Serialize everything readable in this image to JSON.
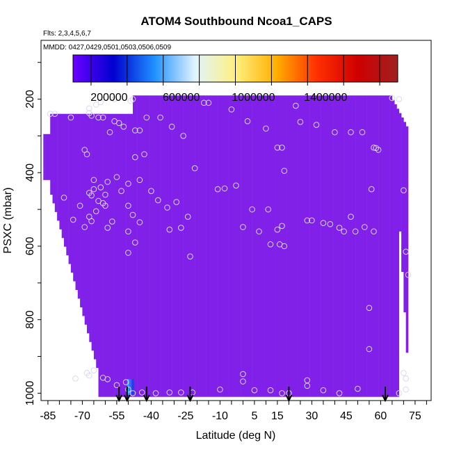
{
  "chart_data": {
    "type": "scatter",
    "title": "ATOM4 Southbound Ncoa1_CAPS",
    "flights_label": "Flts: 2,3,4,5,6,7",
    "dates_label": "MMDD: 0427,0429,0501,0503,0506,0509",
    "xlabel": "Latitude (deg N)",
    "ylabel": "PSXC (mbar)",
    "xlim": [
      -88,
      82
    ],
    "ylim": [
      1020,
      40
    ],
    "xticks": [
      -85,
      -70,
      -55,
      -40,
      -25,
      -10,
      5,
      15,
      30,
      45,
      60,
      75
    ],
    "x_minor_step": 5,
    "yticks": [
      200,
      400,
      600,
      800,
      1000
    ],
    "colorbar": {
      "range": [
        0,
        1800000
      ],
      "ticks": [
        200000,
        600000,
        1000000,
        1400000
      ],
      "tick_labels": [
        "200000",
        "600000",
        "1000000",
        "1400000"
      ],
      "colors": [
        "#6a00ff",
        "#0000d0",
        "#1e90ff",
        "#e0f4ff",
        "#fff080",
        "#ffb000",
        "#ff3000",
        "#d00000",
        "#a02020"
      ]
    },
    "field_value": 50000,
    "field_color": "#8020e8",
    "highlight_cells": [
      {
        "lat_from": -50.5,
        "lat_to": -49.5,
        "p_from": 962,
        "p_to": 1005,
        "color": "#00b8ff"
      },
      {
        "lat_from": -49.5,
        "lat_to": -48.5,
        "p_from": 962,
        "p_to": 1005,
        "color": "#4060ff"
      },
      {
        "lat_from": -48.5,
        "lat_to": -47.5,
        "p_from": 962,
        "p_to": 1005,
        "color": "#2040e0"
      }
    ],
    "flight_arrows_lat": [
      -54,
      -50.5,
      -42,
      -23,
      20,
      62
    ],
    "observations": [
      {
        "lat": -84,
        "p": 240
      },
      {
        "lat": -82,
        "p": 240
      },
      {
        "lat": -75,
        "p": 250
      },
      {
        "lat": -67,
        "p": 225
      },
      {
        "lat": -67,
        "p": 238
      },
      {
        "lat": -66,
        "p": 245
      },
      {
        "lat": -64,
        "p": 215
      },
      {
        "lat": -62,
        "p": 208
      },
      {
        "lat": -63,
        "p": 250
      },
      {
        "lat": -61,
        "p": 250
      },
      {
        "lat": -56,
        "p": 200
      },
      {
        "lat": -56,
        "p": 260
      },
      {
        "lat": -54,
        "p": 265
      },
      {
        "lat": -58,
        "p": 290
      },
      {
        "lat": -52,
        "p": 275
      },
      {
        "lat": -49,
        "p": 205
      },
      {
        "lat": -48,
        "p": 200
      },
      {
        "lat": -47,
        "p": 285
      },
      {
        "lat": -45,
        "p": 285
      },
      {
        "lat": -42,
        "p": 250
      },
      {
        "lat": -36,
        "p": 250
      },
      {
        "lat": -31,
        "p": 275
      },
      {
        "lat": -26,
        "p": 300
      },
      {
        "lat": -17,
        "p": 210
      },
      {
        "lat": -15,
        "p": 210
      },
      {
        "lat": -5,
        "p": 228
      },
      {
        "lat": 2,
        "p": 260
      },
      {
        "lat": 10,
        "p": 280
      },
      {
        "lat": 23,
        "p": 218
      },
      {
        "lat": 25,
        "p": 262
      },
      {
        "lat": 32,
        "p": 270
      },
      {
        "lat": 40,
        "p": 290
      },
      {
        "lat": 47,
        "p": 290
      },
      {
        "lat": 52,
        "p": 290
      },
      {
        "lat": 57,
        "p": 332
      },
      {
        "lat": 58,
        "p": 333
      },
      {
        "lat": 59,
        "p": 338
      },
      {
        "lat": 65,
        "p": 197
      },
      {
        "lat": 68,
        "p": 200
      },
      {
        "lat": 15,
        "p": 332
      },
      {
        "lat": 17,
        "p": 332
      },
      {
        "lat": 18,
        "p": 395
      },
      {
        "lat": -69,
        "p": 338
      },
      {
        "lat": -68,
        "p": 350
      },
      {
        "lat": -65,
        "p": 420
      },
      {
        "lat": -62,
        "p": 440
      },
      {
        "lat": -59,
        "p": 425
      },
      {
        "lat": -55,
        "p": 412
      },
      {
        "lat": -50,
        "p": 430
      },
      {
        "lat": -47,
        "p": 358
      },
      {
        "lat": -43,
        "p": 350
      },
      {
        "lat": -45,
        "p": 420
      },
      {
        "lat": -21,
        "p": 388
      },
      {
        "lat": -67,
        "p": 455
      },
      {
        "lat": -66,
        "p": 462
      },
      {
        "lat": -65,
        "p": 445
      },
      {
        "lat": -63,
        "p": 477
      },
      {
        "lat": -61,
        "p": 483
      },
      {
        "lat": -60,
        "p": 490
      },
      {
        "lat": -64,
        "p": 505
      },
      {
        "lat": -67,
        "p": 520
      },
      {
        "lat": -66,
        "p": 532
      },
      {
        "lat": -69,
        "p": 548
      },
      {
        "lat": -74,
        "p": 528
      },
      {
        "lat": -71,
        "p": 490
      },
      {
        "lat": -78,
        "p": 468
      },
      {
        "lat": -59,
        "p": 550
      },
      {
        "lat": -57,
        "p": 533
      },
      {
        "lat": -60,
        "p": 460
      },
      {
        "lat": -53,
        "p": 450
      },
      {
        "lat": -50,
        "p": 490
      },
      {
        "lat": -48,
        "p": 515
      },
      {
        "lat": -45,
        "p": 535
      },
      {
        "lat": -50,
        "p": 560
      },
      {
        "lat": -47,
        "p": 590
      },
      {
        "lat": -50,
        "p": 618
      },
      {
        "lat": -40,
        "p": 450
      },
      {
        "lat": -37,
        "p": 475
      },
      {
        "lat": -33,
        "p": 495
      },
      {
        "lat": -29,
        "p": 480
      },
      {
        "lat": -32,
        "p": 555
      },
      {
        "lat": -27,
        "p": 550
      },
      {
        "lat": -24,
        "p": 520
      },
      {
        "lat": -23,
        "p": 628
      },
      {
        "lat": -11,
        "p": 445
      },
      {
        "lat": -8,
        "p": 443
      },
      {
        "lat": -3,
        "p": 435
      },
      {
        "lat": 4,
        "p": 500
      },
      {
        "lat": 7,
        "p": 560
      },
      {
        "lat": 11,
        "p": 500
      },
      {
        "lat": 15,
        "p": 555
      },
      {
        "lat": 17,
        "p": 545
      },
      {
        "lat": 12,
        "p": 595
      },
      {
        "lat": 16,
        "p": 595
      },
      {
        "lat": 18,
        "p": 600
      },
      {
        "lat": 0,
        "p": 548
      },
      {
        "lat": 28,
        "p": 530
      },
      {
        "lat": 30,
        "p": 530
      },
      {
        "lat": 35,
        "p": 537
      },
      {
        "lat": 38,
        "p": 540
      },
      {
        "lat": 42,
        "p": 550
      },
      {
        "lat": 44,
        "p": 560
      },
      {
        "lat": 47,
        "p": 520
      },
      {
        "lat": 49,
        "p": 560
      },
      {
        "lat": 53,
        "p": 548
      },
      {
        "lat": 56,
        "p": 445
      },
      {
        "lat": 57,
        "p": 560
      },
      {
        "lat": 70,
        "p": 448
      },
      {
        "lat": 71,
        "p": 615
      },
      {
        "lat": 72,
        "p": 678
      },
      {
        "lat": 55,
        "p": 768
      },
      {
        "lat": 55,
        "p": 880
      },
      {
        "lat": 70,
        "p": 945
      },
      {
        "lat": 71,
        "p": 960
      },
      {
        "lat": 71,
        "p": 990
      },
      {
        "lat": 68,
        "p": 1000
      },
      {
        "lat": -73,
        "p": 960
      },
      {
        "lat": -68,
        "p": 945
      },
      {
        "lat": -67,
        "p": 952
      },
      {
        "lat": -65,
        "p": 938
      },
      {
        "lat": -61,
        "p": 958
      },
      {
        "lat": -59,
        "p": 962
      },
      {
        "lat": -55,
        "p": 978
      },
      {
        "lat": -51,
        "p": 970
      },
      {
        "lat": -50,
        "p": 990
      },
      {
        "lat": -48,
        "p": 1000
      },
      {
        "lat": -44,
        "p": 998
      },
      {
        "lat": -38,
        "p": 1000
      },
      {
        "lat": -32,
        "p": 998
      },
      {
        "lat": -27,
        "p": 998
      },
      {
        "lat": -22,
        "p": 998
      },
      {
        "lat": -10,
        "p": 990
      },
      {
        "lat": 0,
        "p": 948
      },
      {
        "lat": 0,
        "p": 968
      },
      {
        "lat": 5,
        "p": 992
      },
      {
        "lat": 12,
        "p": 992
      },
      {
        "lat": 17,
        "p": 1000
      },
      {
        "lat": 20,
        "p": 1000
      },
      {
        "lat": 28,
        "p": 965
      },
      {
        "lat": 28,
        "p": 980
      },
      {
        "lat": 35,
        "p": 992
      },
      {
        "lat": 42,
        "p": 1000
      },
      {
        "lat": 50,
        "p": 988
      }
    ]
  }
}
